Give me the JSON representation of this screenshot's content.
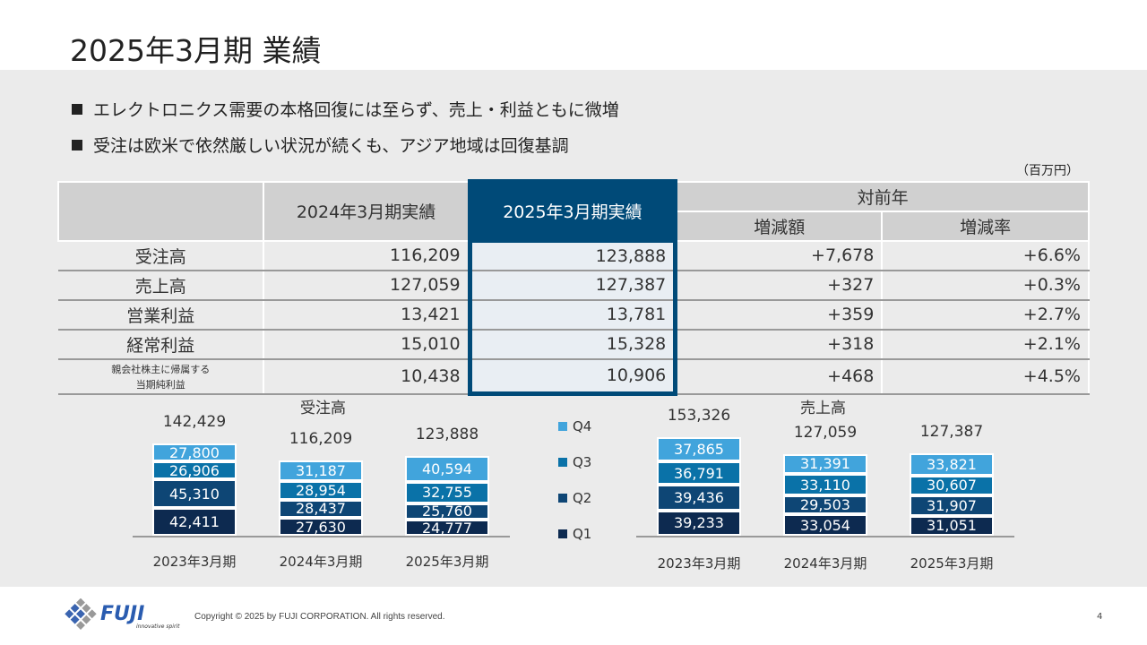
{
  "title": "2025年3月期 業績",
  "bullets": [
    "エレクトロニクス需要の本格回復には至らず、売上・利益ともに微増",
    "受注は欧米で依然厳しい状況が続くも、アジア地域は回復基調"
  ],
  "unit": "（百万円）",
  "table": {
    "headers": {
      "prev": "2024年3月期実績",
      "curr": "2025年3月期実績",
      "yoy": "対前年",
      "diff": "増減額",
      "rate": "増減率"
    },
    "rows": [
      {
        "label": "受注高",
        "prev": "116,209",
        "curr": "123,888",
        "diff": "+7,678",
        "rate": "+6.6%"
      },
      {
        "label": "売上高",
        "prev": "127,059",
        "curr": "127,387",
        "diff": "+327",
        "rate": "+0.3%"
      },
      {
        "label": "営業利益",
        "prev": "13,421",
        "curr": "13,781",
        "diff": "+359",
        "rate": "+2.7%"
      },
      {
        "label": "経常利益",
        "prev": "15,010",
        "curr": "15,328",
        "diff": "+318",
        "rate": "+2.1%"
      },
      {
        "label": "親会社株主に帰属する",
        "label2": "当期純利益",
        "prev": "10,438",
        "curr": "10,906",
        "diff": "+468",
        "rate": "+4.5%"
      }
    ]
  },
  "colors": {
    "Q1": "#0d2a50",
    "Q2": "#0e4675",
    "Q3": "#0a72a8",
    "Q4": "#41a4dc",
    "accent": "#004a78"
  },
  "legend": [
    "Q4",
    "Q3",
    "Q2",
    "Q1"
  ],
  "chart_data": [
    {
      "type": "bar",
      "stacked": true,
      "title": "受注高",
      "categories": [
        "2023年3月期",
        "2024年3月期",
        "2025年3月期"
      ],
      "totals": [
        "142,429",
        "116,209",
        "123,888"
      ],
      "series": [
        {
          "name": "Q1",
          "values": [
            42411,
            27630,
            24777
          ]
        },
        {
          "name": "Q2",
          "values": [
            45310,
            28437,
            25760
          ]
        },
        {
          "name": "Q3",
          "values": [
            26906,
            28954,
            32755
          ]
        },
        {
          "name": "Q4",
          "values": [
            27800,
            31187,
            40594
          ]
        }
      ]
    },
    {
      "type": "bar",
      "stacked": true,
      "title": "売上高",
      "categories": [
        "2023年3月期",
        "2024年3月期",
        "2025年3月期"
      ],
      "totals": [
        "153,326",
        "127,059",
        "127,387"
      ],
      "series": [
        {
          "name": "Q1",
          "values": [
            39233,
            33054,
            31051
          ]
        },
        {
          "name": "Q2",
          "values": [
            39436,
            29503,
            31907
          ]
        },
        {
          "name": "Q3",
          "values": [
            36791,
            33110,
            30607
          ]
        },
        {
          "name": "Q4",
          "values": [
            37865,
            31391,
            33821
          ]
        }
      ]
    }
  ],
  "footer": {
    "copyright": "Copyright © 2025 by FUJI CORPORATION. All rights reserved.",
    "page": "4",
    "logo": "FUJI",
    "tagline": "innovative spirit"
  }
}
